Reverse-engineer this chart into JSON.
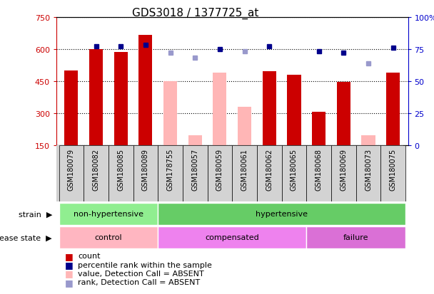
{
  "title": "GDS3018 / 1377725_at",
  "samples": [
    "GSM180079",
    "GSM180082",
    "GSM180085",
    "GSM180089",
    "GSM178755",
    "GSM180057",
    "GSM180059",
    "GSM180061",
    "GSM180062",
    "GSM180065",
    "GSM180068",
    "GSM180069",
    "GSM180073",
    "GSM180075"
  ],
  "count_values": [
    500,
    600,
    585,
    665,
    null,
    null,
    null,
    null,
    495,
    480,
    305,
    445,
    null,
    490
  ],
  "count_absent": [
    null,
    null,
    null,
    null,
    450,
    195,
    490,
    330,
    null,
    null,
    null,
    null,
    195,
    null
  ],
  "percentile_values": [
    null,
    77,
    77,
    78,
    null,
    null,
    75,
    null,
    77,
    null,
    73,
    72,
    null,
    76
  ],
  "percentile_absent": [
    null,
    null,
    null,
    null,
    72,
    68,
    null,
    73,
    null,
    null,
    null,
    null,
    64,
    null
  ],
  "ylim_left": [
    150,
    750
  ],
  "ylim_right": [
    0,
    100
  ],
  "yticks_left": [
    150,
    300,
    450,
    600,
    750
  ],
  "yticks_right": [
    0,
    25,
    50,
    75,
    100
  ],
  "strain_groups": [
    {
      "label": "non-hypertensive",
      "start": 0,
      "end": 4,
      "color": "#90EE90"
    },
    {
      "label": "hypertensive",
      "start": 4,
      "end": 14,
      "color": "#66CC66"
    }
  ],
  "disease_groups": [
    {
      "label": "control",
      "start": 0,
      "end": 4,
      "color": "#FFB6C1"
    },
    {
      "label": "compensated",
      "start": 4,
      "end": 10,
      "color": "#EE82EE"
    },
    {
      "label": "failure",
      "start": 10,
      "end": 14,
      "color": "#DA70D6"
    }
  ],
  "bar_color_present": "#CC0000",
  "bar_color_absent": "#FFB6B6",
  "dot_color_present": "#00008B",
  "dot_color_absent": "#9999CC",
  "bar_width": 0.55,
  "background_color": "#FFFFFF",
  "tick_label_color_left": "#CC0000",
  "tick_label_color_right": "#0000CC",
  "strain_label_color": "#000000",
  "disease_label_color": "#000000"
}
